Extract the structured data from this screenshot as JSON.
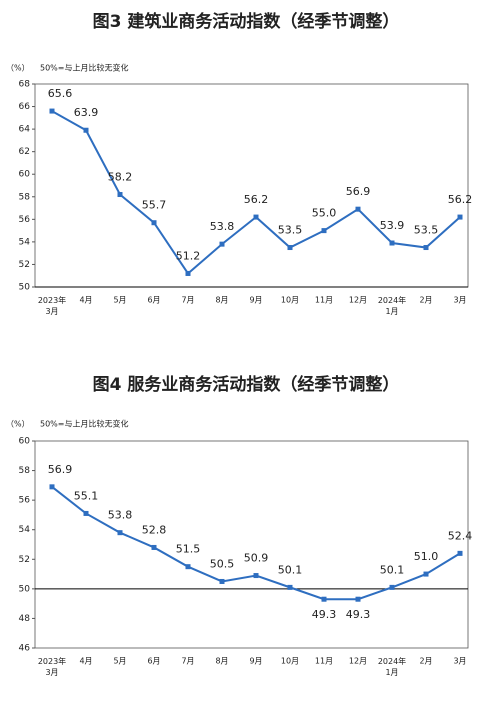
{
  "chart_data": [
    {
      "type": "line",
      "title": "图3  建筑业商务活动指数（经季节调整）",
      "unit": "（%）",
      "note": "50%=与上月比较无变化",
      "categories": [
        "2023年\n3月",
        "4月",
        "5月",
        "6月",
        "7月",
        "8月",
        "9月",
        "10月",
        "11月",
        "12月",
        "2024年\n1月",
        "2月",
        "3月"
      ],
      "series": [
        {
          "color": "#2e6ec0",
          "values": [
            65.6,
            63.9,
            58.2,
            55.7,
            51.2,
            53.8,
            56.2,
            53.5,
            55.0,
            56.9,
            53.9,
            53.5,
            56.2
          ],
          "value_labels": [
            "65.6",
            "63.9",
            "58.2",
            "55.7",
            "51.2",
            "53.8",
            "56.2",
            "53.5",
            "55.0",
            "56.9",
            "53.9",
            "53.5",
            "56.2"
          ]
        }
      ],
      "ylim": [
        50,
        68
      ],
      "yticks": [
        50,
        52,
        54,
        56,
        58,
        60,
        62,
        64,
        66,
        68
      ],
      "baseline": 50
    },
    {
      "type": "line",
      "title": "图4  服务业商务活动指数（经季节调整）",
      "unit": "（%）",
      "note": "50%=与上月比较无变化",
      "categories": [
        "2023年\n3月",
        "4月",
        "5月",
        "6月",
        "7月",
        "8月",
        "9月",
        "10月",
        "11月",
        "12月",
        "2024年\n1月",
        "2月",
        "3月"
      ],
      "series": [
        {
          "color": "#2e6ec0",
          "values": [
            56.9,
            55.1,
            53.8,
            52.8,
            51.5,
            50.5,
            50.9,
            50.1,
            49.3,
            49.3,
            50.1,
            51.0,
            52.4
          ],
          "value_labels": [
            "56.9",
            "55.1",
            "53.8",
            "52.8",
            "51.5",
            "50.5",
            "50.9",
            "50.1",
            "49.3",
            "49.3",
            "50.1",
            "51.0",
            "52.4"
          ]
        }
      ],
      "ylim": [
        46,
        60
      ],
      "yticks": [
        46,
        48,
        50,
        52,
        54,
        56,
        58,
        60
      ],
      "baseline": 50
    }
  ]
}
